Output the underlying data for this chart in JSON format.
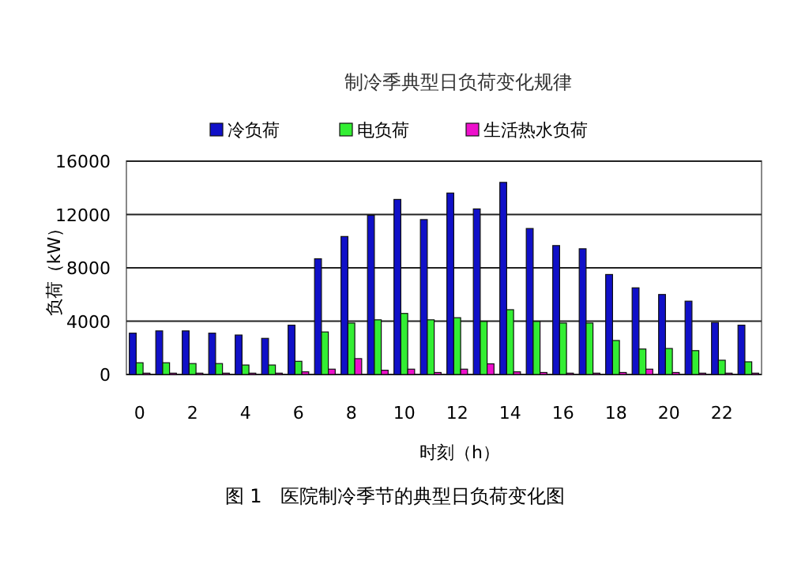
{
  "chart_data": {
    "type": "bar",
    "title": "制冷季典型日负荷变化规律",
    "xlabel": "时刻（h）",
    "ylabel": "负荷（kW）",
    "categories": [
      "0",
      null,
      "2",
      null,
      "4",
      null,
      "6",
      null,
      "8",
      null,
      "10",
      null,
      "12",
      null,
      "14",
      null,
      "16",
      null,
      "18",
      null,
      "20",
      null,
      "22",
      null
    ],
    "series": [
      {
        "name": "冷负荷",
        "color": "#1010c8",
        "values": [
          3100,
          3270,
          3270,
          3100,
          2960,
          2710,
          3700,
          8680,
          10350,
          11940,
          13130,
          11620,
          13610,
          12420,
          14410,
          10950,
          9670,
          9430,
          7500,
          6500,
          6000,
          5500,
          3900,
          3700
        ]
      },
      {
        "name": "电负荷",
        "color": "#33ee33",
        "values": [
          880,
          880,
          820,
          820,
          710,
          710,
          990,
          3190,
          3860,
          4100,
          4580,
          4100,
          4260,
          3980,
          4860,
          3980,
          3860,
          3860,
          2550,
          1910,
          1950,
          1790,
          1070,
          950
        ]
      },
      {
        "name": "生活热水负荷",
        "color": "#ee10cc",
        "values": [
          100,
          100,
          100,
          100,
          100,
          100,
          200,
          400,
          1190,
          320,
          400,
          150,
          400,
          800,
          200,
          150,
          100,
          100,
          150,
          400,
          150,
          100,
          100,
          100
        ]
      }
    ],
    "ylim": [
      0,
      16000
    ],
    "yticks": [
      0,
      4000,
      8000,
      12000,
      16000
    ],
    "grid": "y",
    "legend": "top",
    "annotations": [
      "图 1　医院制冷季节的典型日负荷变化图"
    ]
  }
}
